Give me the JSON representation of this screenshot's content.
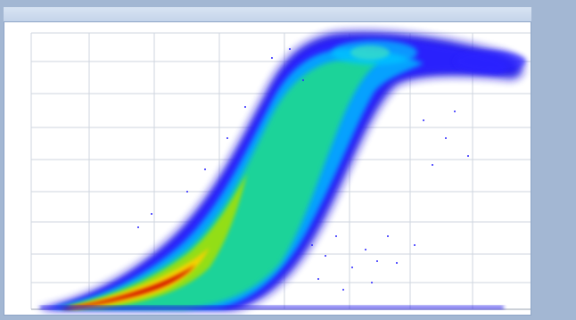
{
  "window": {
    "title": "",
    "colors": {
      "frame": "#a3b7d3",
      "background": "#ffffff",
      "grid": "#cfd5df",
      "axis": "#6b7280"
    }
  },
  "side_panel": {
    "lines_a": "",
    "lines_b": "",
    "lines_c": ""
  },
  "plot": {
    "y_ticks": [
      "",
      "",
      "",
      "",
      "",
      "",
      "",
      "",
      "",
      ""
    ],
    "colormap": [
      "#0000cc",
      "#2b2bff",
      "#00b0ff",
      "#00e6a0",
      "#8be000",
      "#ffd000",
      "#ff6a00",
      "#d00000"
    ]
  }
}
